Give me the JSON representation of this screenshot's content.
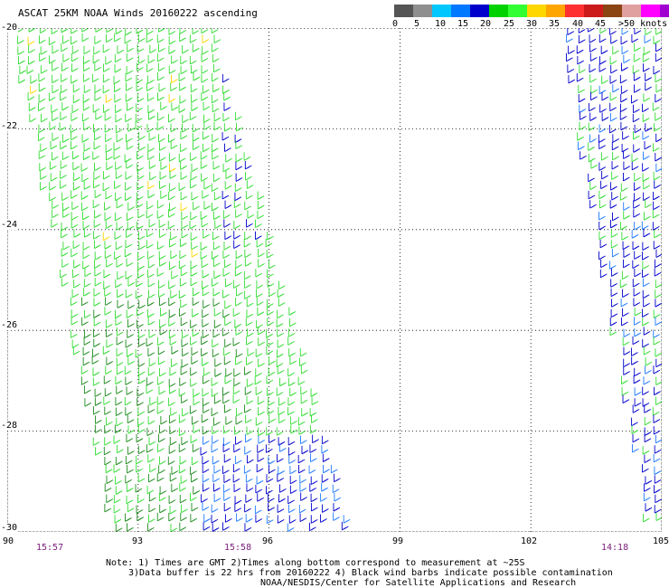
{
  "title": "ASCAT 25KM NOAA Winds 20160222 ascending",
  "legend": {
    "colors": [
      "#555555",
      "#8f8f8f",
      "#00c8ff",
      "#0078ff",
      "#0000cc",
      "#00d200",
      "#32ff32",
      "#ffd700",
      "#ffa500",
      "#ff3030",
      "#cc1a1a",
      "#8b4513",
      "#e0a0a0",
      "#ff00ff",
      "#a000d0",
      "#5a006e"
    ],
    "labels": [
      "0",
      "5",
      "10",
      "15",
      "20",
      "25",
      "30",
      "35",
      "40",
      "45",
      ">50 knots"
    ]
  },
  "axes": {
    "y_ticks": [
      "-20",
      "-22",
      "-24",
      "-26",
      "-28",
      "-30"
    ],
    "x_ticks": [
      "90",
      "93",
      "96",
      "99",
      "102",
      "105"
    ],
    "xlim": [
      90,
      105
    ],
    "ylim": [
      -30,
      -20
    ],
    "grid": "dotted"
  },
  "times": [
    "15:57",
    "15:58",
    "14:18"
  ],
  "notes": {
    "line1": "Note: 1) Times are GMT 2)Times along bottom correspond to measurement at ~25S",
    "line2": "3)Data buffer is 22 hrs from 20160222 4) Black wind barbs indicate possible contamination",
    "line3": "NOAA/NESDIS/Center for Satellite Applications and Research"
  },
  "swaths": [
    {
      "name": "west swath",
      "edges": [
        [
          90.0,
          -20.0
        ],
        [
          94.7,
          -20.0
        ],
        [
          97.8,
          -30.0
        ],
        [
          92.3,
          -30.0
        ]
      ],
      "dominant": "green",
      "contains": [
        "light green",
        "dark green",
        "blue",
        "yellow"
      ]
    },
    {
      "name": "east swath",
      "edges": [
        [
          102.6,
          -20.0
        ],
        [
          105.0,
          -20.0
        ],
        [
          105.0,
          -30.0
        ],
        [
          104.6,
          -30.0
        ]
      ],
      "dominant": "blue",
      "contains": [
        "blue",
        "green"
      ]
    }
  ]
}
